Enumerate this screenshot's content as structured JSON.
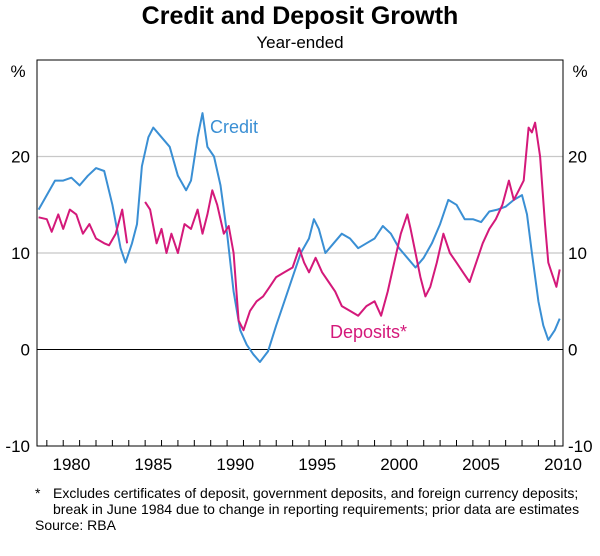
{
  "chart_data": {
    "type": "line",
    "title": "Credit and Deposit Growth",
    "subtitle": "Year-ended",
    "ylabel_left": "%",
    "ylabel_right": "%",
    "ylim": [
      -10,
      30
    ],
    "xlim": [
      1978.4,
      2010.5
    ],
    "yticks": [
      -10,
      0,
      10,
      20
    ],
    "xticks": [
      1980,
      1985,
      1990,
      1995,
      2000,
      2005,
      2010
    ],
    "grid": true,
    "colors": {
      "credit": "#3a8fd4",
      "deposits": "#d4197a"
    },
    "series": [
      {
        "name": "Credit",
        "key": "credit",
        "x": [
          1978.5,
          1979,
          1979.5,
          1980,
          1980.5,
          1981,
          1981.5,
          1982,
          1982.5,
          1983,
          1983.5,
          1983.8,
          1984.2,
          1984.5,
          1984.8,
          1985.2,
          1985.5,
          1986,
          1986.5,
          1987,
          1987.5,
          1987.8,
          1988.2,
          1988.5,
          1988.8,
          1989.2,
          1989.6,
          1990,
          1990.4,
          1990.8,
          1991.2,
          1991.6,
          1992,
          1992.5,
          1993,
          1993.5,
          1994,
          1994.5,
          1995,
          1995.3,
          1995.6,
          1996,
          1996.5,
          1997,
          1997.5,
          1998,
          1998.5,
          1999,
          1999.5,
          2000,
          2000.5,
          2001,
          2001.5,
          2002,
          2002.5,
          2003,
          2003.5,
          2004,
          2004.5,
          2005,
          2005.5,
          2006,
          2006.5,
          2007,
          2007.5,
          2008,
          2008.3,
          2008.6,
          2009,
          2009.3,
          2009.6,
          2010,
          2010.3
        ],
        "y": [
          14.5,
          16,
          17.5,
          17.5,
          17.8,
          17,
          18,
          18.8,
          18.5,
          15,
          10.5,
          9,
          11,
          13,
          19,
          22,
          23,
          22,
          21,
          18,
          16.5,
          17.5,
          22,
          24.5,
          21,
          20,
          17,
          12,
          6,
          2,
          0.5,
          -0.5,
          -1.3,
          -0.2,
          2.5,
          5,
          7.5,
          10,
          11.5,
          13.5,
          12.5,
          10,
          11,
          12,
          11.5,
          10.5,
          11,
          11.5,
          12.8,
          12,
          10.5,
          9.5,
          8.5,
          9.5,
          11,
          13,
          15.5,
          15,
          13.5,
          13.5,
          13.2,
          14.3,
          14.5,
          14.8,
          15.5,
          16,
          14,
          10,
          5,
          2.5,
          1,
          2,
          3.2
        ]
      },
      {
        "name": "Deposits*",
        "key": "deposits",
        "segments": [
          {
            "x": [
              1978.5,
              1979,
              1979.3,
              1979.7,
              1980,
              1980.4,
              1980.8,
              1981.2,
              1981.6,
              1982,
              1982.5,
              1982.8,
              1983.2,
              1983.6,
              1983.9
            ],
            "y": [
              13.7,
              13.5,
              12.2,
              14,
              12.5,
              14.5,
              14,
              12,
              13,
              11.5,
              11,
              10.8,
              12,
              14.5,
              11
            ]
          },
          {
            "x": [
              1985,
              1985.3,
              1985.7,
              1986,
              1986.3,
              1986.6,
              1987,
              1987.4,
              1987.8,
              1988.2,
              1988.5,
              1988.8,
              1989.1,
              1989.4,
              1989.8,
              1990.1,
              1990.4,
              1990.7,
              1991,
              1991.4,
              1991.8,
              1992.2,
              1992.6,
              1993,
              1993.5,
              1994,
              1994.4,
              1994.7,
              1995,
              1995.4,
              1995.8,
              1996.2,
              1996.6,
              1997,
              1997.5,
              1998,
              1998.5,
              1999,
              1999.4,
              1999.8,
              2000.2,
              2000.6,
              2001,
              2001.2,
              2001.5,
              2001.8,
              2002.1,
              2002.4,
              2002.8,
              2003.2,
              2003.6,
              2004,
              2004.4,
              2004.8,
              2005.2,
              2005.6,
              2006,
              2006.4,
              2006.8,
              2007.2,
              2007.5,
              2007.8,
              2008.1,
              2008.4,
              2008.6,
              2008.8,
              2009.1,
              2009.4,
              2009.6,
              2009.8,
              2010.1,
              2010.3
            ],
            "y": [
              15.3,
              14.5,
              11,
              12.5,
              10,
              12,
              10,
              13,
              12.5,
              14.5,
              12,
              14,
              16.5,
              15,
              12,
              12.8,
              10,
              3,
              2,
              4,
              5,
              5.5,
              6.5,
              7.5,
              8,
              8.5,
              10.5,
              9,
              8,
              9.5,
              8,
              7,
              6,
              4.5,
              4,
              3.5,
              4.5,
              5,
              3.5,
              6,
              9,
              12,
              14,
              12.5,
              10,
              7.5,
              5.5,
              6.5,
              9,
              12,
              10,
              9,
              8,
              7,
              9,
              11,
              12.5,
              13.5,
              15,
              17.5,
              15.5,
              16.5,
              17.5,
              23,
              22.5,
              23.5,
              20,
              13,
              9,
              8,
              6.5,
              8.3
            ]
          }
        ]
      }
    ],
    "annotations": [
      {
        "text": "Credit",
        "series": "credit"
      },
      {
        "text": "Deposits*",
        "series": "deposits"
      }
    ]
  },
  "footnote": "Excludes certificates of deposit, government deposits, and foreign currency deposits; break in June 1984 due to change in reporting requirements; prior data are estimates",
  "footnote_marker": "*",
  "source": "Source: RBA"
}
